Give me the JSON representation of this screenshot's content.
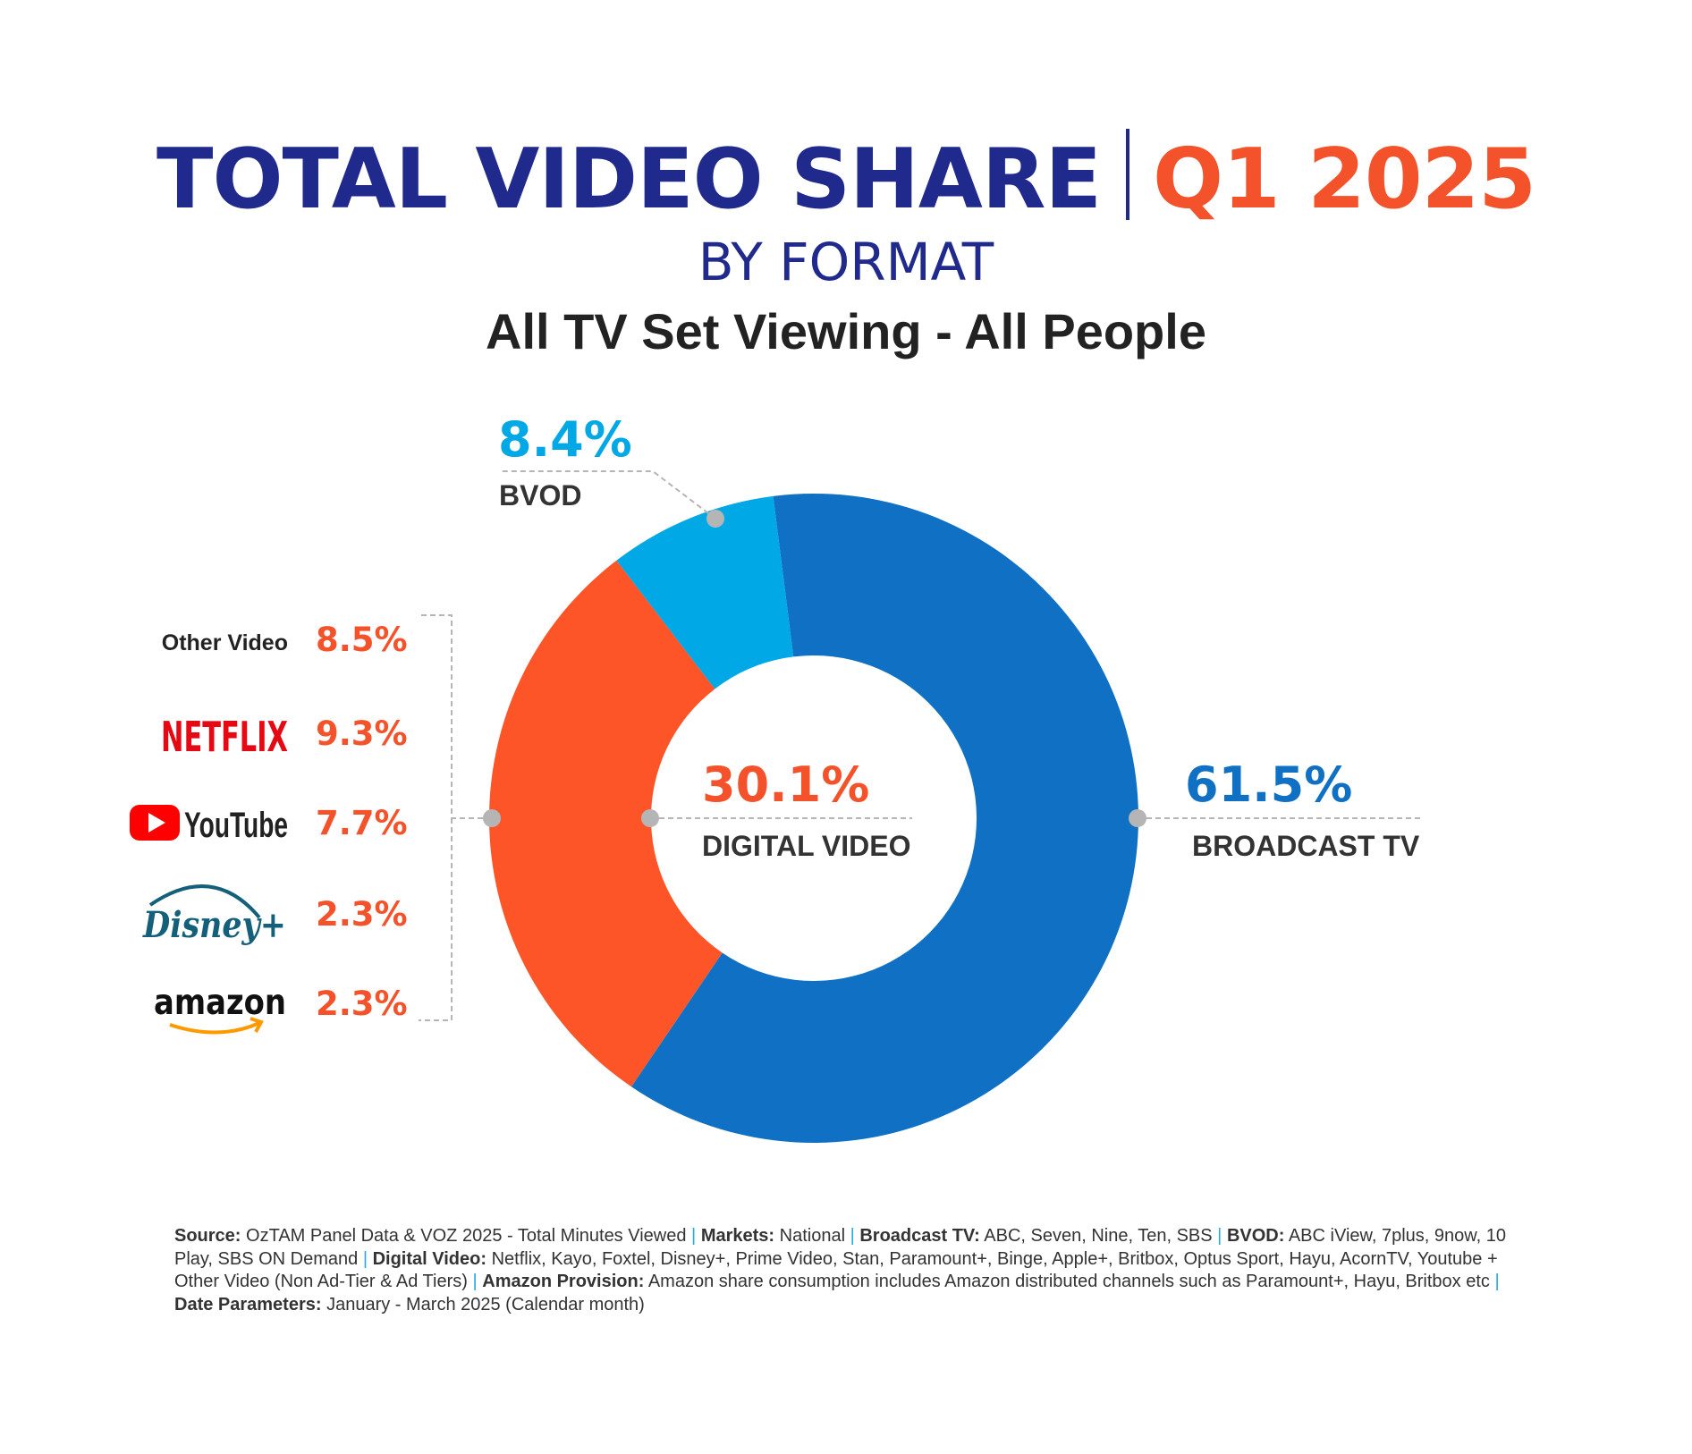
{
  "title": {
    "main": "TOTAL VIDEO SHARE",
    "period": "Q1 2025",
    "subtitle": "BY FORMAT",
    "subtitle2": "All TV Set Viewing - All People"
  },
  "colors": {
    "title_blue": "#1f2a8c",
    "orange": "#f4522a",
    "broadcast_blue": "#1071c4",
    "bvod_cyan": "#00a8e6",
    "digital_orange": "#fd5528",
    "connector_grey": "#b5b5b5",
    "label_dark": "#333333"
  },
  "chart_data": {
    "type": "pie",
    "style": "donut",
    "categories": [
      "BROADCAST TV",
      "DIGITAL VIDEO",
      "BVOD"
    ],
    "values": [
      61.5,
      30.1,
      8.4
    ],
    "value_labels": [
      "61.5%",
      "30.1%",
      "8.4%"
    ],
    "unit": "%",
    "breakdown": {
      "parent": "DIGITAL VIDEO",
      "items": [
        {
          "name": "Other Video",
          "value": 8.5,
          "label": "8.5%",
          "icon": "other-video-text"
        },
        {
          "name": "Netflix",
          "value": 9.3,
          "label": "9.3%",
          "icon": "netflix-logo",
          "logo_text": "NETFLIX"
        },
        {
          "name": "YouTube",
          "value": 7.7,
          "label": "7.7%",
          "icon": "youtube-logo",
          "logo_text": "YouTube"
        },
        {
          "name": "Disney+",
          "value": 2.3,
          "label": "2.3%",
          "icon": "disney-plus-logo",
          "logo_text": "Disney+"
        },
        {
          "name": "amazon",
          "value": 2.3,
          "label": "2.3%",
          "icon": "amazon-logo",
          "logo_text": "amazon"
        }
      ]
    }
  },
  "footnote": [
    {
      "label": "Source:",
      "text": " OzTAM Panel Data & VOZ 2025 - Total Minutes Viewed "
    },
    {
      "label": "Markets:",
      "text": " National "
    },
    {
      "label": "Broadcast TV:",
      "text": " ABC, Seven, Nine, Ten, SBS "
    },
    {
      "label": "BVOD:",
      "text": " ABC iView, 7plus, 9now, 10 Play, SBS ON Demand "
    },
    {
      "label": "Digital Video:",
      "text": " Netflix, Kayo, Foxtel, Disney+, Prime Video, Stan, Paramount+, Binge, Apple+, Britbox, Optus Sport, Hayu, AcornTV, Youtube + Other Video (Non Ad-Tier & Ad Tiers) "
    },
    {
      "label": "Amazon Provision:",
      "text": " Amazon share consumption includes Amazon distributed channels such as Paramount+, Hayu, Britbox etc "
    },
    {
      "label": "Date Parameters:",
      "text": " January - March 2025 (Calendar month)"
    }
  ]
}
